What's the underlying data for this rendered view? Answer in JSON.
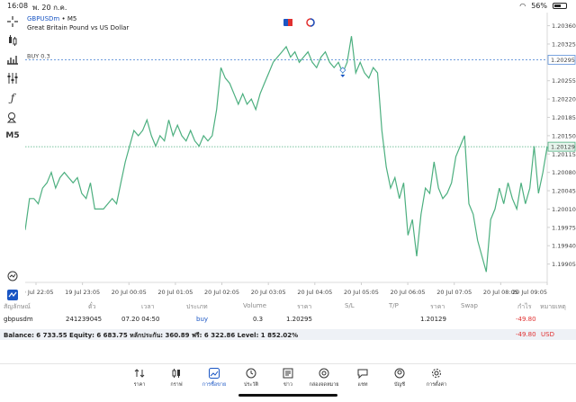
{
  "status": {
    "time": "16:08",
    "date": "พ. 20 ก.ค.",
    "battery": "56%"
  },
  "header": {
    "symbol": "GBPUSDm",
    "timeframe_sep": "•",
    "timeframe": "M5",
    "description": "Great Britain Pound vs US Dollar"
  },
  "toolbar": {
    "timeframe_label": "M5"
  },
  "chart_data": {
    "type": "line",
    "ylim": [
      1.1987,
      1.20385
    ],
    "y_ticks": [
      1.2036,
      1.20325,
      1.20255,
      1.2022,
      1.20185,
      1.2015,
      1.20115,
      1.2008,
      1.20045,
      1.2001,
      1.19975,
      1.1994,
      1.19905
    ],
    "x_ticks": [
      "19 Jul 22:05",
      "19 Jul 23:05",
      "20 Jul 00:05",
      "20 Jul 01:05",
      "20 Jul 02:05",
      "20 Jul 03:05",
      "20 Jul 04:05",
      "20 Jul 05:05",
      "20 Jul 06:05",
      "20 Jul 07:05",
      "20 Jul 08:05",
      "20 Jul 09:05"
    ],
    "buy_label": "BUY 0.3",
    "buy_price": 1.20295,
    "current_price": 1.20129,
    "buy_price_label": "1.20295",
    "current_price_label": "1.20129",
    "line_color": "#4caf7f",
    "values": [
      1.1997,
      1.2003,
      1.2003,
      1.2002,
      1.2005,
      1.2006,
      1.2008,
      1.2005,
      1.2007,
      1.2008,
      1.2007,
      1.2006,
      1.2007,
      1.2004,
      1.2003,
      1.2006,
      1.2001,
      1.2001,
      1.2001,
      1.2002,
      1.2003,
      1.2002,
      1.2006,
      1.201,
      1.2013,
      1.2016,
      1.2015,
      1.2016,
      1.2018,
      1.2015,
      1.2013,
      1.2015,
      1.2014,
      1.2018,
      1.2015,
      1.2017,
      1.2015,
      1.2014,
      1.2016,
      1.2014,
      1.2013,
      1.2015,
      1.2014,
      1.2015,
      1.202,
      1.2028,
      1.2026,
      1.2025,
      1.2023,
      1.2021,
      1.2023,
      1.2021,
      1.2022,
      1.202,
      1.2023,
      1.2025,
      1.2027,
      1.2029,
      1.203,
      1.2031,
      1.2032,
      1.203,
      1.2031,
      1.2029,
      1.203,
      1.2031,
      1.2029,
      1.2028,
      1.203,
      1.2031,
      1.2029,
      1.2028,
      1.2029,
      1.2027,
      1.2029,
      1.2034,
      1.2027,
      1.2029,
      1.2027,
      1.2026,
      1.2028,
      1.2027,
      1.2016,
      1.2009,
      1.2005,
      1.2007,
      1.2003,
      1.2006,
      1.1996,
      1.1999,
      1.1992,
      1.2,
      1.2005,
      1.2004,
      1.201,
      1.2005,
      1.2003,
      1.2004,
      1.2006,
      1.2011,
      1.2013,
      1.2015,
      1.2002,
      1.2,
      1.1995,
      1.1992,
      1.1989,
      1.1999,
      1.2001,
      1.2005,
      1.2002,
      1.2006,
      1.2003,
      1.2001,
      1.2006,
      1.2002,
      1.2005,
      1.2013,
      1.2004,
      1.2008,
      1.20129
    ]
  },
  "positions": {
    "headers": [
      "สัญลักษณ์",
      "ตั๋ว",
      "เวลา",
      "ประเภท",
      "Volume",
      "ราคา",
      "S/L",
      "T/P",
      "ราคา",
      "Swap",
      "กำไร",
      "หมายเหตุ"
    ],
    "row": {
      "symbol": "gbpusdm",
      "ticket": "241239045",
      "time": "07.20 04:50",
      "type": "buy",
      "volume": "0.3",
      "open_price": "1.20295",
      "current_price": "1.20129",
      "profit": "-49.80"
    }
  },
  "balance": {
    "text": "Balance: 6 733.55 Equity: 6 683.75 หลักประกัน: 360.89 ฟรี: 6 322.86 Level: 1 852.02%",
    "profit": "-49.80",
    "currency": "USD"
  },
  "nav": [
    "ราคา",
    "กราฟ",
    "การซื้อขาย",
    "ประวัติ",
    "ข่าว",
    "กล่องจดหมาย",
    "แชท",
    "บัญชี",
    "การตั้งค่า"
  ],
  "colors": {
    "accent": "#1a56c4",
    "loss": "#e03030",
    "line": "#4caf7f"
  }
}
